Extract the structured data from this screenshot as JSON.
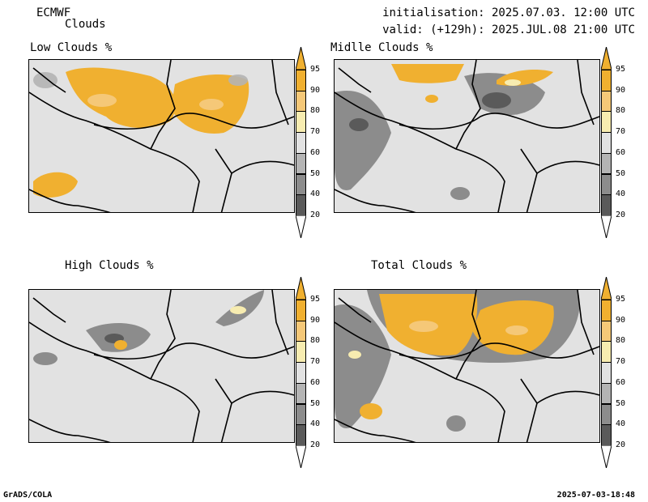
{
  "header": {
    "model": "ECMWF",
    "product": "Clouds",
    "initialisation": "initialisation: 2025.07.03. 12:00 UTC",
    "valid": "valid: (+129h): 2025.JUL.08 21:00 UTC"
  },
  "panels": [
    {
      "title": "Low Clouds %"
    },
    {
      "title": "Midlle Clouds %"
    },
    {
      "title": "High Clouds %"
    },
    {
      "title": "Total Clouds %"
    }
  ],
  "colorbar": {
    "levels": [
      "95",
      "90",
      "80",
      "70",
      "60",
      "50",
      "40",
      "20"
    ],
    "colors": {
      "above95": "#f0b030",
      "c90_95": "#f0b030",
      "c80_90": "#f5c878",
      "c70_80": "#f7ecb0",
      "c60_70": "#e2e2e2",
      "c50_60": "#b4b4b4",
      "c40_50": "#8c8c8c",
      "c20_40": "#5a5a5a",
      "below20": "#ffffff"
    }
  },
  "footer": {
    "left": "GrADS/COLA",
    "right": "2025-07-03-18:48"
  }
}
